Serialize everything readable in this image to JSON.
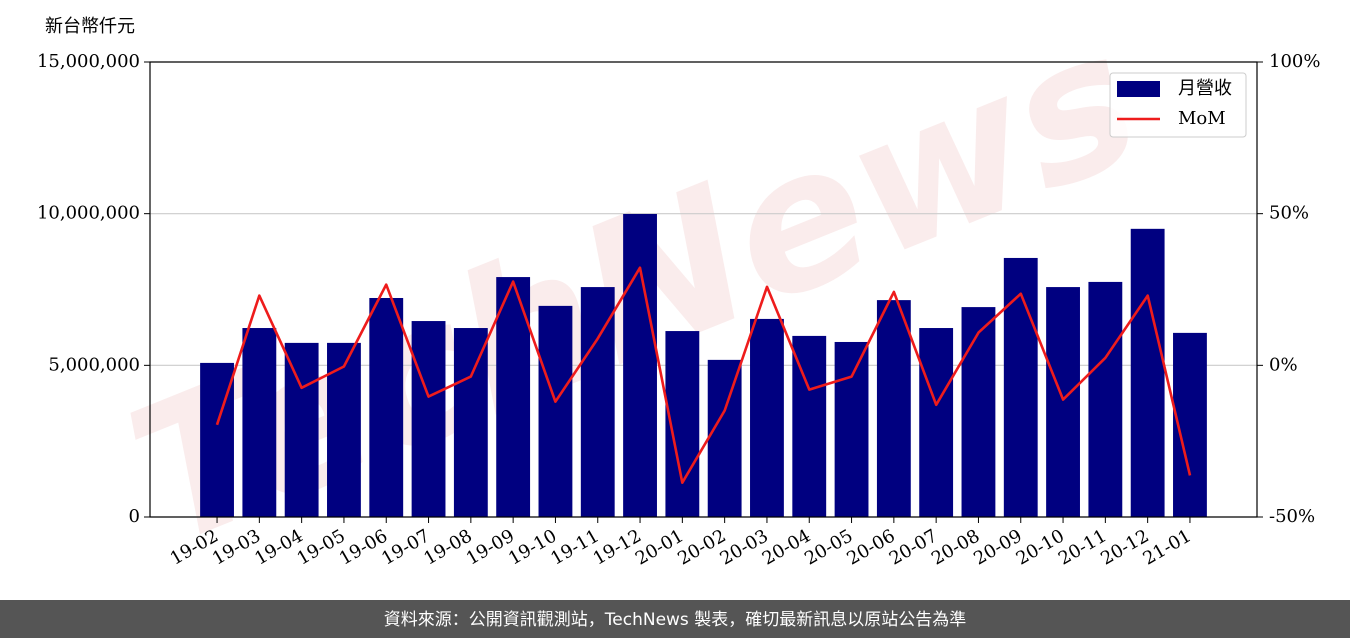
{
  "chart_data": {
    "type": "bar_line",
    "y_label": "新台幣仟元",
    "watermark": "TechNews",
    "categories": [
      "19-02",
      "19-03",
      "19-04",
      "19-05",
      "19-06",
      "19-07",
      "19-08",
      "19-09",
      "19-10",
      "19-11",
      "19-12",
      "20-01",
      "20-02",
      "20-03",
      "20-04",
      "20-05",
      "20-06",
      "20-07",
      "20-08",
      "20-09",
      "20-10",
      "20-11",
      "20-12",
      "21-01"
    ],
    "series": [
      {
        "name": "月營收",
        "type": "bar",
        "color": "#000080",
        "values": [
          5080000,
          6230000,
          5740000,
          5740000,
          7220000,
          6460000,
          6230000,
          7910000,
          6960000,
          7580000,
          9990000,
          6130000,
          5180000,
          6530000,
          5970000,
          5770000,
          7150000,
          6230000,
          6920000,
          8540000,
          7580000,
          7750000,
          9500000,
          6070000
        ]
      },
      {
        "name": "MoM",
        "type": "line",
        "axis": "y2",
        "color": "#ee1c1c",
        "values": [
          -19.6,
          23.0,
          -7.4,
          -0.4,
          26.6,
          -10.3,
          -3.7,
          27.6,
          -12.0,
          8.8,
          32.2,
          -38.7,
          -14.9,
          25.9,
          -8.0,
          -3.7,
          24.2,
          -13.0,
          10.8,
          23.6,
          -11.3,
          2.5,
          23.0,
          -36.3
        ]
      }
    ],
    "ylim": [
      0,
      15000000
    ],
    "yticks": [
      0,
      {
        "value": 5000000,
        "label": "5,000,000"
      },
      {
        "value": 10000000,
        "label": "10,000,000"
      },
      {
        "value": 15000000,
        "label": "15,000,000"
      }
    ],
    "y2lim": [
      -50,
      100
    ],
    "y2ticks": [
      {
        "value": -50,
        "label": "-50%"
      },
      {
        "value": 0,
        "label": "0%"
      },
      {
        "value": 50,
        "label": "50%"
      },
      {
        "value": 100,
        "label": "100%"
      }
    ],
    "grid": true,
    "legend": "upper right"
  },
  "footer": "資料來源：公開資訊觀測站，TechNews 製表，確切最新訊息以原站公告為準"
}
